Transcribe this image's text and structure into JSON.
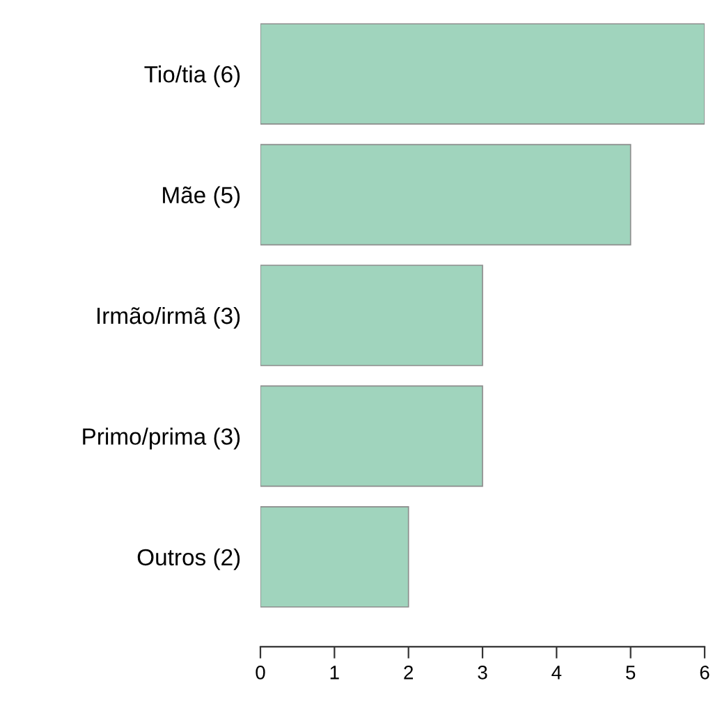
{
  "chart_data": {
    "type": "bar",
    "orientation": "horizontal",
    "categories": [
      "Tio/tia (6)",
      "Mãe (5)",
      "Irmão/irmã (3)",
      "Primo/prima (3)",
      "Outros (2)"
    ],
    "values": [
      6,
      5,
      3,
      3,
      2
    ],
    "color": "#a0d4bd",
    "xlim": [
      0,
      6
    ],
    "xticks": [
      0,
      1,
      2,
      3,
      4,
      5,
      6
    ],
    "grid": false,
    "legend": false
  }
}
